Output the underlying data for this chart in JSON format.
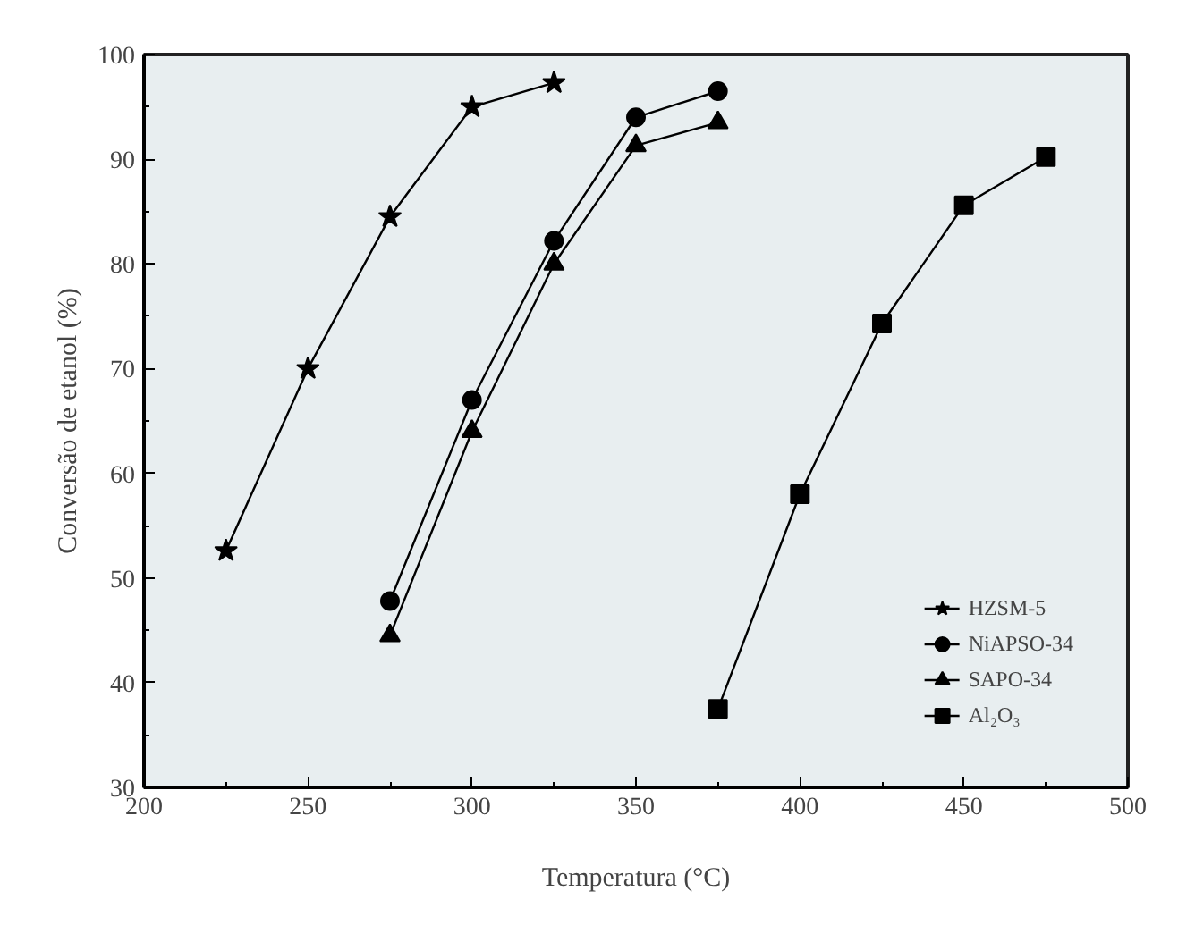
{
  "chart_data": {
    "type": "line",
    "xlabel": "Temperatura (°C)",
    "ylabel": "Conversão de etanol (%)",
    "xlim": [
      200,
      500
    ],
    "ylim": [
      30,
      100
    ],
    "xticks": [
      200,
      250,
      300,
      350,
      400,
      450,
      500
    ],
    "yticks": [
      30,
      40,
      50,
      60,
      70,
      80,
      90,
      100
    ],
    "legend": "bottom right",
    "grid": false,
    "line_style": "solid",
    "series": [
      {
        "name": "HZSM-5",
        "color": "#000000",
        "marker": "star",
        "x": [
          225,
          250,
          275,
          300,
          325
        ],
        "values": [
          52.6,
          70,
          84.5,
          95,
          97.3
        ]
      },
      {
        "name": "NiAPSO-34",
        "color": "#000000",
        "marker": "circle",
        "x": [
          275,
          300,
          325,
          350,
          375
        ],
        "values": [
          47.8,
          67,
          82.2,
          94,
          96.5
        ]
      },
      {
        "name": "SAPO-34",
        "color": "#000000",
        "marker": "triangle",
        "x": [
          275,
          300,
          325,
          350,
          375
        ],
        "values": [
          44.5,
          64,
          80,
          91.3,
          93.5
        ]
      },
      {
        "name": "Al₂O₃",
        "color": "#000000",
        "marker": "square",
        "x": [
          375,
          400,
          425,
          450,
          475
        ],
        "values": [
          37.5,
          58,
          74.3,
          85.6,
          90.2
        ]
      }
    ]
  }
}
